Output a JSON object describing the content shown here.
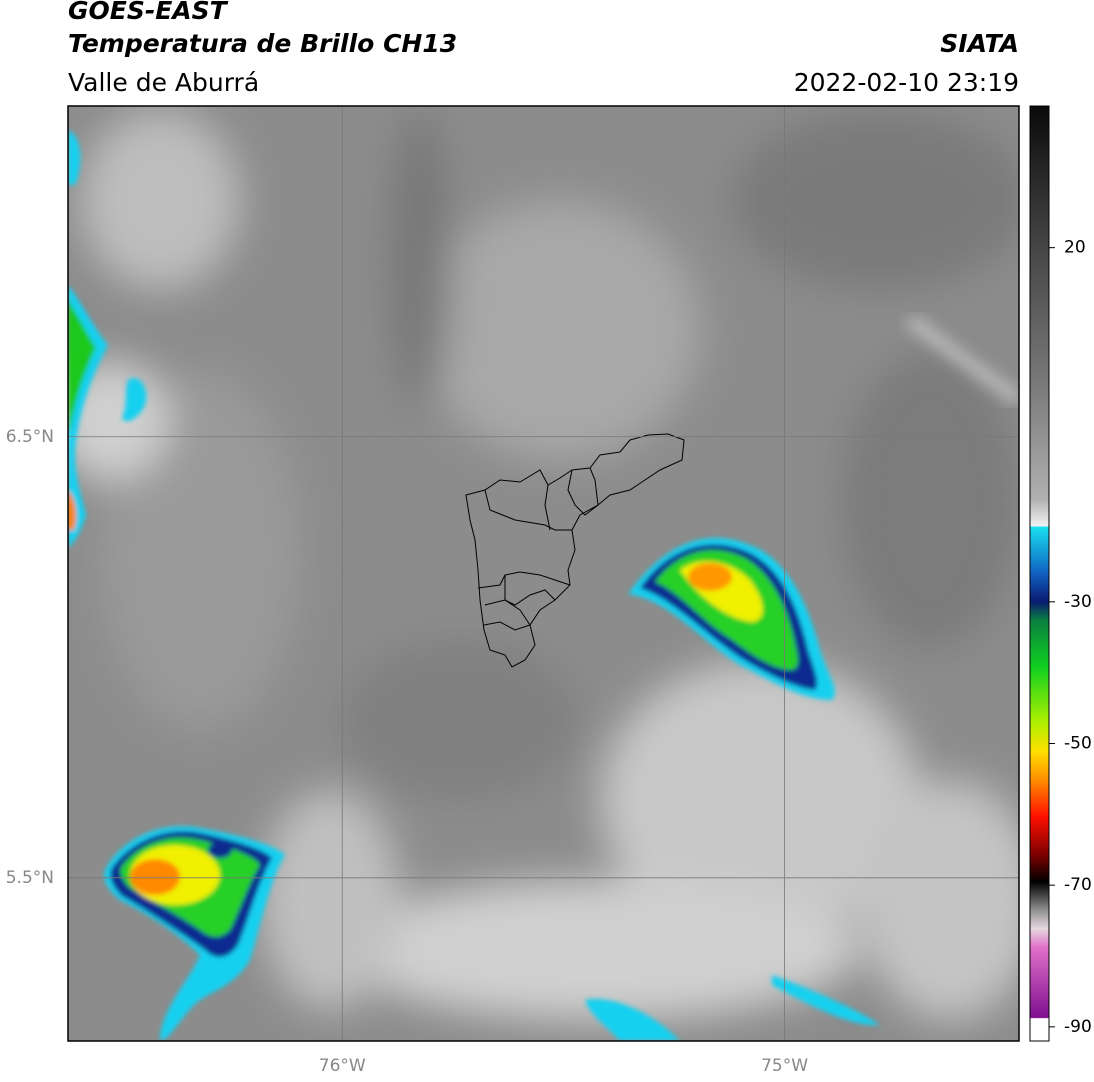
{
  "header": {
    "title": "GOES-EAST",
    "subtitle": "Temperatura de Brillo CH13",
    "region": "Valle de Aburrá",
    "source": "SIATA",
    "datetime": "2022-02-10 23:19"
  },
  "map": {
    "xlim": [
      -76.62,
      -74.47
    ],
    "ylim": [
      5.13,
      7.25
    ],
    "xticks": [
      {
        "value": -76,
        "label": "76°W"
      },
      {
        "value": -75,
        "label": "75°W"
      }
    ],
    "yticks": [
      {
        "value": 6.5,
        "label": "6.5°N"
      },
      {
        "value": 5.5,
        "label": "5.5°N"
      }
    ],
    "grid": true
  },
  "colorbar": {
    "lim": [
      -92,
      40
    ],
    "ticks": [
      20,
      -30,
      -50,
      -70,
      -90
    ]
  }
}
